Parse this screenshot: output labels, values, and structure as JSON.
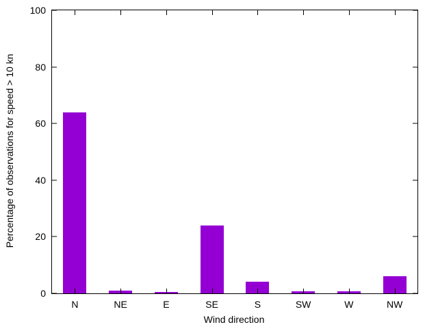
{
  "chart_data": {
    "type": "bar",
    "title": "",
    "categories": [
      "N",
      "NE",
      "E",
      "SE",
      "S",
      "SW",
      "W",
      "NW"
    ],
    "values": [
      64,
      1,
      0.4,
      24,
      4,
      0.8,
      0.8,
      6
    ],
    "xlabel": "Wind direction",
    "ylabel": "Percentage of observations for speed > 10 kn",
    "ylim": [
      0,
      100
    ],
    "yticks": [
      0,
      20,
      40,
      60,
      80,
      100
    ],
    "grid": false,
    "legend": "none",
    "tick_style": "inward-mirrored-box",
    "bar_color": "#9400d3",
    "axis_color": "#000000",
    "background_color": "#ffffff"
  }
}
